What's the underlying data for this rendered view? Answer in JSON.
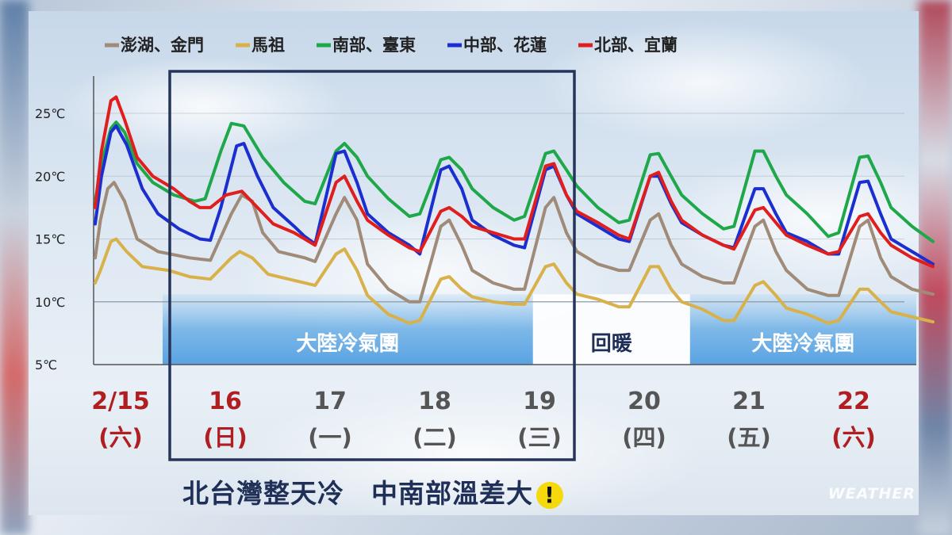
{
  "chart_data": {
    "type": "line",
    "y_unit": "℃",
    "ylim": [
      5,
      27
    ],
    "y_ticks": [
      "25℃",
      "20℃",
      "15℃",
      "10℃",
      "5℃"
    ],
    "y_tick_values": [
      25,
      20,
      15,
      10,
      5
    ],
    "grid": true,
    "legend_position": "top",
    "days": [
      {
        "date": "2/15",
        "weekday": "(六)",
        "color": "#b01e22"
      },
      {
        "date": "16",
        "weekday": "(日)",
        "color": "#b01e22"
      },
      {
        "date": "17",
        "weekday": "(一)",
        "color": "#555555"
      },
      {
        "date": "18",
        "weekday": "(二)",
        "color": "#555555"
      },
      {
        "date": "19",
        "weekday": "(三)",
        "color": "#555555"
      },
      {
        "date": "20",
        "weekday": "(四)",
        "color": "#555555"
      },
      {
        "date": "21",
        "weekday": "(五)",
        "color": "#555555"
      },
      {
        "date": "22",
        "weekday": "(六)",
        "color": "#b01e22"
      }
    ],
    "series": [
      {
        "name": "澎湖、金門",
        "color": "#a08a78",
        "points": [
          [
            0.0,
            13.5
          ],
          [
            0.05,
            16.5
          ],
          [
            0.12,
            19.0
          ],
          [
            0.18,
            19.5
          ],
          [
            0.28,
            18.0
          ],
          [
            0.4,
            15.0
          ],
          [
            0.6,
            14.0
          ],
          [
            0.9,
            13.5
          ],
          [
            1.1,
            13.3
          ],
          [
            1.3,
            17.0
          ],
          [
            1.4,
            18.5
          ],
          [
            1.5,
            18.0
          ],
          [
            1.6,
            15.5
          ],
          [
            1.75,
            14.0
          ],
          [
            2.0,
            13.5
          ],
          [
            2.1,
            13.2
          ],
          [
            2.3,
            17.0
          ],
          [
            2.38,
            18.3
          ],
          [
            2.5,
            16.5
          ],
          [
            2.6,
            13.0
          ],
          [
            2.8,
            11.0
          ],
          [
            3.0,
            10.0
          ],
          [
            3.1,
            10.0
          ],
          [
            3.3,
            16.0
          ],
          [
            3.38,
            16.5
          ],
          [
            3.5,
            14.5
          ],
          [
            3.6,
            12.5
          ],
          [
            3.8,
            11.5
          ],
          [
            4.0,
            11.0
          ],
          [
            4.1,
            11.0
          ],
          [
            4.3,
            17.5
          ],
          [
            4.38,
            18.3
          ],
          [
            4.5,
            15.5
          ],
          [
            4.6,
            14.0
          ],
          [
            4.8,
            13.0
          ],
          [
            5.0,
            12.5
          ],
          [
            5.1,
            12.5
          ],
          [
            5.3,
            16.5
          ],
          [
            5.38,
            17.0
          ],
          [
            5.5,
            14.5
          ],
          [
            5.6,
            13.0
          ],
          [
            5.8,
            12.0
          ],
          [
            6.0,
            11.5
          ],
          [
            6.1,
            11.5
          ],
          [
            6.3,
            16.0
          ],
          [
            6.38,
            16.5
          ],
          [
            6.5,
            14.0
          ],
          [
            6.6,
            12.5
          ],
          [
            6.8,
            11.0
          ],
          [
            7.0,
            10.5
          ],
          [
            7.1,
            10.5
          ],
          [
            7.3,
            16.0
          ],
          [
            7.38,
            16.5
          ],
          [
            7.5,
            13.5
          ],
          [
            7.6,
            12.0
          ],
          [
            7.8,
            11.0
          ],
          [
            8.0,
            10.6
          ]
        ]
      },
      {
        "name": "馬祖",
        "color": "#d9b14a",
        "points": [
          [
            0.0,
            11.5
          ],
          [
            0.05,
            12.5
          ],
          [
            0.15,
            14.8
          ],
          [
            0.2,
            15.0
          ],
          [
            0.3,
            14.0
          ],
          [
            0.45,
            12.8
          ],
          [
            0.7,
            12.5
          ],
          [
            0.9,
            12.0
          ],
          [
            1.1,
            11.8
          ],
          [
            1.3,
            13.5
          ],
          [
            1.38,
            14.0
          ],
          [
            1.5,
            13.5
          ],
          [
            1.65,
            12.2
          ],
          [
            1.9,
            11.7
          ],
          [
            2.1,
            11.3
          ],
          [
            2.3,
            13.8
          ],
          [
            2.38,
            14.2
          ],
          [
            2.5,
            12.5
          ],
          [
            2.6,
            10.5
          ],
          [
            2.8,
            9.0
          ],
          [
            3.0,
            8.3
          ],
          [
            3.1,
            8.5
          ],
          [
            3.3,
            11.8
          ],
          [
            3.38,
            12.0
          ],
          [
            3.5,
            11.0
          ],
          [
            3.6,
            10.4
          ],
          [
            3.8,
            10.0
          ],
          [
            4.0,
            9.8
          ],
          [
            4.1,
            9.8
          ],
          [
            4.3,
            12.8
          ],
          [
            4.38,
            13.0
          ],
          [
            4.5,
            11.5
          ],
          [
            4.6,
            10.6
          ],
          [
            4.8,
            10.2
          ],
          [
            5.0,
            9.6
          ],
          [
            5.1,
            9.6
          ],
          [
            5.3,
            12.8
          ],
          [
            5.38,
            12.8
          ],
          [
            5.5,
            11.0
          ],
          [
            5.6,
            10.0
          ],
          [
            5.8,
            9.4
          ],
          [
            6.0,
            8.5
          ],
          [
            6.1,
            8.5
          ],
          [
            6.3,
            11.3
          ],
          [
            6.38,
            11.6
          ],
          [
            6.5,
            10.5
          ],
          [
            6.6,
            9.5
          ],
          [
            6.8,
            9.0
          ],
          [
            7.0,
            8.3
          ],
          [
            7.1,
            8.5
          ],
          [
            7.3,
            11.0
          ],
          [
            7.38,
            11.0
          ],
          [
            7.5,
            10.0
          ],
          [
            7.6,
            9.2
          ],
          [
            7.8,
            8.8
          ],
          [
            8.0,
            8.4
          ]
        ]
      },
      {
        "name": "南部、臺東",
        "color": "#1ea84a",
        "points": [
          [
            0.0,
            18.0
          ],
          [
            0.06,
            21.0
          ],
          [
            0.15,
            23.8
          ],
          [
            0.2,
            24.3
          ],
          [
            0.28,
            23.5
          ],
          [
            0.4,
            21.0
          ],
          [
            0.55,
            19.5
          ],
          [
            0.75,
            18.5
          ],
          [
            0.95,
            18.0
          ],
          [
            1.05,
            18.2
          ],
          [
            1.2,
            22.0
          ],
          [
            1.3,
            24.2
          ],
          [
            1.42,
            24.0
          ],
          [
            1.6,
            21.5
          ],
          [
            1.8,
            19.5
          ],
          [
            2.0,
            18.0
          ],
          [
            2.1,
            17.8
          ],
          [
            2.3,
            22.0
          ],
          [
            2.38,
            22.6
          ],
          [
            2.5,
            21.5
          ],
          [
            2.6,
            20.0
          ],
          [
            2.8,
            18.2
          ],
          [
            3.0,
            16.8
          ],
          [
            3.1,
            17.0
          ],
          [
            3.3,
            21.3
          ],
          [
            3.38,
            21.5
          ],
          [
            3.5,
            20.5
          ],
          [
            3.6,
            19.0
          ],
          [
            3.8,
            17.5
          ],
          [
            4.0,
            16.5
          ],
          [
            4.1,
            16.8
          ],
          [
            4.3,
            21.8
          ],
          [
            4.38,
            22.0
          ],
          [
            4.5,
            20.5
          ],
          [
            4.6,
            19.2
          ],
          [
            4.8,
            17.5
          ],
          [
            5.0,
            16.3
          ],
          [
            5.1,
            16.5
          ],
          [
            5.3,
            21.7
          ],
          [
            5.38,
            21.8
          ],
          [
            5.5,
            20.0
          ],
          [
            5.6,
            18.5
          ],
          [
            5.8,
            17.0
          ],
          [
            6.0,
            15.8
          ],
          [
            6.1,
            16.0
          ],
          [
            6.3,
            22.0
          ],
          [
            6.38,
            22.0
          ],
          [
            6.5,
            20.0
          ],
          [
            6.6,
            18.5
          ],
          [
            6.8,
            17.0
          ],
          [
            7.0,
            15.2
          ],
          [
            7.1,
            15.5
          ],
          [
            7.3,
            21.5
          ],
          [
            7.38,
            21.6
          ],
          [
            7.5,
            19.5
          ],
          [
            7.6,
            17.5
          ],
          [
            7.8,
            16.0
          ],
          [
            8.0,
            14.8
          ]
        ]
      },
      {
        "name": "中部、花蓮",
        "color": "#1b2fd0",
        "points": [
          [
            0.0,
            16.2
          ],
          [
            0.06,
            20.0
          ],
          [
            0.15,
            23.5
          ],
          [
            0.2,
            24.0
          ],
          [
            0.3,
            22.5
          ],
          [
            0.45,
            19.0
          ],
          [
            0.6,
            17.0
          ],
          [
            0.8,
            15.8
          ],
          [
            1.0,
            15.0
          ],
          [
            1.1,
            14.9
          ],
          [
            1.2,
            17.5
          ],
          [
            1.35,
            22.4
          ],
          [
            1.42,
            22.6
          ],
          [
            1.55,
            20.0
          ],
          [
            1.7,
            17.5
          ],
          [
            1.9,
            16.0
          ],
          [
            2.0,
            15.2
          ],
          [
            2.1,
            14.6
          ],
          [
            2.3,
            21.8
          ],
          [
            2.38,
            22.0
          ],
          [
            2.5,
            19.5
          ],
          [
            2.6,
            17.0
          ],
          [
            2.8,
            15.5
          ],
          [
            3.0,
            14.5
          ],
          [
            3.1,
            13.8
          ],
          [
            3.3,
            20.5
          ],
          [
            3.38,
            20.8
          ],
          [
            3.5,
            19.0
          ],
          [
            3.6,
            16.5
          ],
          [
            3.8,
            15.3
          ],
          [
            4.0,
            14.5
          ],
          [
            4.1,
            14.3
          ],
          [
            4.3,
            20.5
          ],
          [
            4.38,
            20.8
          ],
          [
            4.5,
            18.5
          ],
          [
            4.6,
            17.0
          ],
          [
            4.8,
            16.0
          ],
          [
            5.0,
            15.0
          ],
          [
            5.1,
            14.8
          ],
          [
            5.3,
            20.0
          ],
          [
            5.38,
            20.0
          ],
          [
            5.5,
            17.8
          ],
          [
            5.6,
            16.3
          ],
          [
            5.8,
            15.3
          ],
          [
            6.0,
            14.5
          ],
          [
            6.1,
            14.3
          ],
          [
            6.3,
            19.0
          ],
          [
            6.38,
            19.0
          ],
          [
            6.5,
            17.0
          ],
          [
            6.6,
            15.5
          ],
          [
            6.8,
            14.8
          ],
          [
            7.0,
            13.8
          ],
          [
            7.1,
            13.8
          ],
          [
            7.3,
            19.5
          ],
          [
            7.38,
            19.6
          ],
          [
            7.5,
            17.0
          ],
          [
            7.6,
            15.0
          ],
          [
            7.8,
            14.0
          ],
          [
            8.0,
            13.0
          ]
        ]
      },
      {
        "name": "北部、宜蘭",
        "color": "#e01e1e",
        "points": [
          [
            0.0,
            17.5
          ],
          [
            0.06,
            22.0
          ],
          [
            0.15,
            26.0
          ],
          [
            0.2,
            26.3
          ],
          [
            0.28,
            24.5
          ],
          [
            0.4,
            21.5
          ],
          [
            0.55,
            20.0
          ],
          [
            0.75,
            19.0
          ],
          [
            0.9,
            18.0
          ],
          [
            1.0,
            17.5
          ],
          [
            1.1,
            17.5
          ],
          [
            1.25,
            18.5
          ],
          [
            1.4,
            18.8
          ],
          [
            1.55,
            17.5
          ],
          [
            1.7,
            16.2
          ],
          [
            1.9,
            15.5
          ],
          [
            2.0,
            15.0
          ],
          [
            2.1,
            14.5
          ],
          [
            2.3,
            19.5
          ],
          [
            2.38,
            20.0
          ],
          [
            2.5,
            18.0
          ],
          [
            2.6,
            16.5
          ],
          [
            2.8,
            15.3
          ],
          [
            3.0,
            14.3
          ],
          [
            3.1,
            14.0
          ],
          [
            3.3,
            17.2
          ],
          [
            3.38,
            17.5
          ],
          [
            3.5,
            16.8
          ],
          [
            3.6,
            16.0
          ],
          [
            3.8,
            15.5
          ],
          [
            4.0,
            15.0
          ],
          [
            4.1,
            15.0
          ],
          [
            4.3,
            20.8
          ],
          [
            4.38,
            21.0
          ],
          [
            4.5,
            18.5
          ],
          [
            4.6,
            17.2
          ],
          [
            4.8,
            16.3
          ],
          [
            5.0,
            15.3
          ],
          [
            5.1,
            15.0
          ],
          [
            5.3,
            20.0
          ],
          [
            5.38,
            20.3
          ],
          [
            5.5,
            18.0
          ],
          [
            5.6,
            16.5
          ],
          [
            5.8,
            15.3
          ],
          [
            6.0,
            14.5
          ],
          [
            6.1,
            14.2
          ],
          [
            6.3,
            17.3
          ],
          [
            6.38,
            17.5
          ],
          [
            6.5,
            16.3
          ],
          [
            6.6,
            15.3
          ],
          [
            6.8,
            14.5
          ],
          [
            7.0,
            13.8
          ],
          [
            7.1,
            14.0
          ],
          [
            7.3,
            16.8
          ],
          [
            7.38,
            17.0
          ],
          [
            7.5,
            15.5
          ],
          [
            7.6,
            14.5
          ],
          [
            7.8,
            13.5
          ],
          [
            8.0,
            12.8
          ]
        ]
      }
    ],
    "bands": [
      {
        "label": "大陸冷氣團",
        "from": 0.65,
        "to": 4.15,
        "style": "cold"
      },
      {
        "label": "回暖",
        "from": 4.15,
        "to": 5.65,
        "style": "warm"
      },
      {
        "label": "大陸冷氣團",
        "from": 5.65,
        "to": 8.0,
        "style": "cold"
      }
    ],
    "highlight": {
      "from_day": 1,
      "to_day": 4
    }
  },
  "bottom_title": "北台灣整天冷　中南部溫差大",
  "warning_mark": "!",
  "watermark": "WEATHER"
}
